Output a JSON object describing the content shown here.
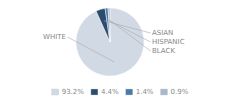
{
  "chart_data": {
    "type": "pie",
    "categories": [
      "WHITE",
      "ASIAN",
      "HISPANIC",
      "BLACK"
    ],
    "values": [
      93.2,
      4.4,
      1.4,
      0.9
    ],
    "value_labels": [
      "93.2%",
      "4.4%",
      "1.4%",
      "0.9%"
    ],
    "colors": [
      "#d0d9e4",
      "#2b4c6f",
      "#4a7aab",
      "#a8b8cc"
    ],
    "legend": "bottom"
  }
}
